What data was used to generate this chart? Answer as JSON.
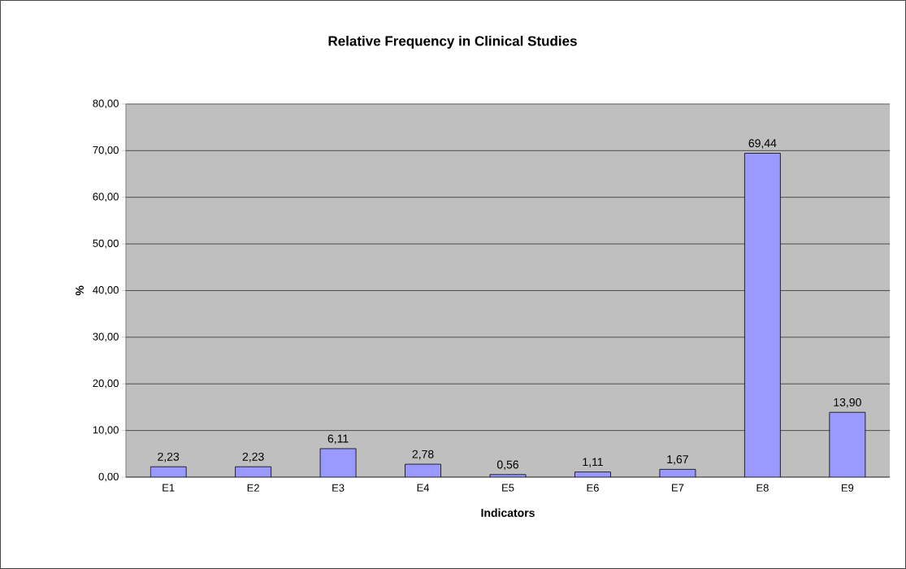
{
  "chart_data": {
    "type": "bar",
    "title": "Relative Frequency in Clinical Studies",
    "xlabel": "Indicators",
    "ylabel": "%",
    "categories": [
      "E1",
      "E2",
      "E3",
      "E4",
      "E5",
      "E6",
      "E7",
      "E8",
      "E9"
    ],
    "values": [
      2.23,
      2.23,
      6.11,
      2.78,
      0.56,
      1.11,
      1.67,
      69.44,
      13.9
    ],
    "value_labels": [
      "2,23",
      "2,23",
      "6,11",
      "2,78",
      "0,56",
      "1,11",
      "1,67",
      "69,44",
      "13,90"
    ],
    "color": "#9999ff",
    "ylim": [
      0,
      80
    ],
    "yticks": [
      {
        "value": 0,
        "label": "0,00"
      },
      {
        "value": 10,
        "label": "10,00"
      },
      {
        "value": 20,
        "label": "20,00"
      },
      {
        "value": 30,
        "label": "30,00"
      },
      {
        "value": 40,
        "label": "40,00"
      },
      {
        "value": 50,
        "label": "50,00"
      },
      {
        "value": 60,
        "label": "60,00"
      },
      {
        "value": 70,
        "label": "70,00"
      },
      {
        "value": 80,
        "label": "80,00"
      }
    ],
    "grid": "y"
  }
}
